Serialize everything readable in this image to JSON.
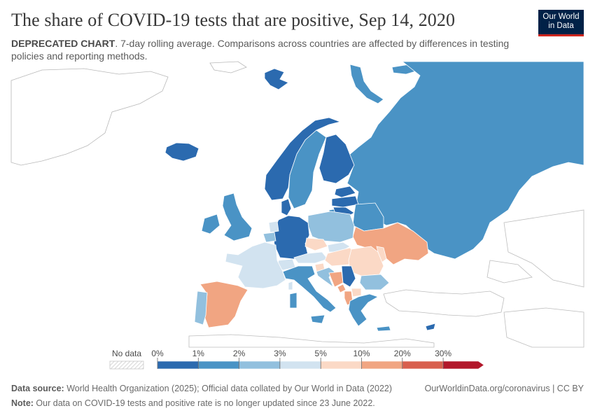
{
  "header": {
    "title": "The share of COVID-19 tests that are positive, Sep 14, 2020",
    "subtitle_bold": "DEPRECATED CHART",
    "subtitle_rest": ". 7-day rolling average. Comparisons across countries are affected by differences in testing policies and reporting methods."
  },
  "logo": {
    "line1": "Our World",
    "line2": "in Data",
    "bg": "#002147",
    "accent": "#ce261e"
  },
  "legend": {
    "no_data_label": "No data",
    "ticks": [
      "0%",
      "1%",
      "2%",
      "3%",
      "5%",
      "10%",
      "20%",
      "30%"
    ],
    "bins": [
      {
        "from": "0%",
        "to": "1%",
        "color": "#2b6aaf"
      },
      {
        "from": "1%",
        "to": "2%",
        "color": "#4a93c5"
      },
      {
        "from": "2%",
        "to": "3%",
        "color": "#92c0de"
      },
      {
        "from": "3%",
        "to": "5%",
        "color": "#d2e3f0"
      },
      {
        "from": "5%",
        "to": "10%",
        "color": "#fbd9c6"
      },
      {
        "from": "10%",
        "to": "20%",
        "color": "#f1a582"
      },
      {
        "from": "20%",
        "to": "30%",
        "color": "#d8604e"
      },
      {
        "from": "30%",
        "to": "",
        "color": "#b2182b"
      }
    ]
  },
  "footer": {
    "source_label": "Data source:",
    "source_text": " World Health Organization (2025); Official data collated by Our World in Data (2022)",
    "link": "OurWorldinData.org/coronavirus | CC BY",
    "note_label": "Note:",
    "note_text": " Our data on COVID-19 tests and positive rate is no longer updated since 23 June 2022."
  }
}
